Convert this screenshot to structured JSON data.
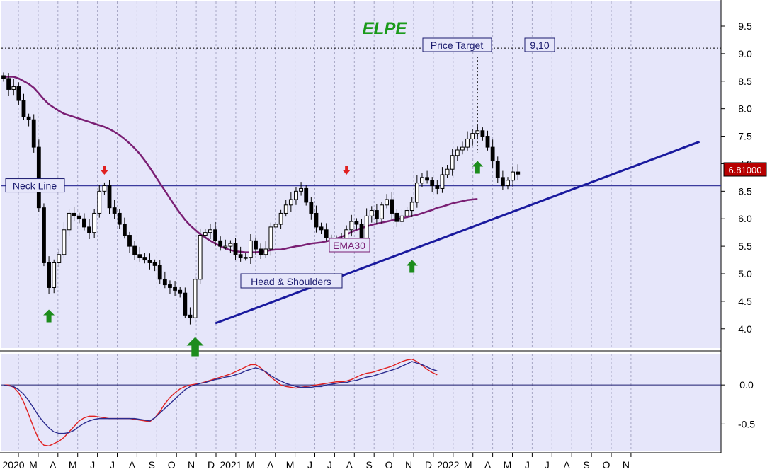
{
  "chart_data": {
    "type": "candlestick",
    "title": "ELPE",
    "colors": {
      "background": "#e6e6fa",
      "title": "#1a9a1a",
      "candle": "#000000",
      "ema": "#7a1f74",
      "trendline": "#1a1a9e",
      "neckline": "#3b3b9e",
      "macd": "#2b2b8e",
      "signal": "#e02020",
      "arrow_up": "#1d8c1d",
      "arrow_down": "#e02020",
      "last_price_bg": "#b80000",
      "last_price_fg": "#ffffff"
    },
    "price_axis": {
      "ticks": [
        "9.5",
        "9.0",
        "8.5",
        "8.0",
        "7.5",
        "7.0",
        "6.5",
        "6.0",
        "5.5",
        "5.0",
        "4.5",
        "4.0"
      ],
      "ylim": [
        3.65,
        9.95
      ]
    },
    "macd_axis": {
      "ticks": [
        "0.0",
        "-0.5"
      ],
      "ylim": [
        -0.85,
        0.4
      ]
    },
    "time_axis": {
      "labels": [
        "2020",
        "M",
        "A",
        "M",
        "J",
        "J",
        "A",
        "S",
        "O",
        "N",
        "D",
        "2021",
        "M",
        "A",
        "M",
        "J",
        "J",
        "A",
        "S",
        "O",
        "N",
        "D",
        "2022",
        "M",
        "A",
        "M",
        "J",
        "J",
        "A",
        "S",
        "O",
        "N"
      ]
    },
    "last_price": "6.81000",
    "annotations": {
      "price_target_label": "Price Target",
      "price_target_value": "9,10",
      "price_target_level": 9.1,
      "neckline_label": "Neck Line",
      "neckline_level": 6.6,
      "ema_label": "EMA30",
      "pattern_label": "Head & Shoulders",
      "trendline": {
        "from": {
          "week": 42,
          "price": 4.1
        },
        "to": {
          "week": 138,
          "price": 7.4
        }
      }
    },
    "price_weekly": [
      8.55,
      8.35,
      8.4,
      8.15,
      7.85,
      7.8,
      7.3,
      6.2,
      5.2,
      4.75,
      5.2,
      5.35,
      5.8,
      6.1,
      6.05,
      6.0,
      5.85,
      5.75,
      6.1,
      6.5,
      6.6,
      6.2,
      6.1,
      5.9,
      5.7,
      5.5,
      5.35,
      5.3,
      5.25,
      5.2,
      5.15,
      4.9,
      4.8,
      4.75,
      4.7,
      4.65,
      4.25,
      4.2,
      4.9,
      5.7,
      5.75,
      5.8,
      5.6,
      5.5,
      5.5,
      5.55,
      5.35,
      5.3,
      5.3,
      5.6,
      5.45,
      5.35,
      5.45,
      5.85,
      5.9,
      6.1,
      6.25,
      6.35,
      6.5,
      6.55,
      6.3,
      6.1,
      5.85,
      5.8,
      5.65,
      5.6,
      5.55,
      5.6,
      5.8,
      5.95,
      5.9,
      5.65,
      6.05,
      6.15,
      6.0,
      6.25,
      6.35,
      6.1,
      5.95,
      6.05,
      6.15,
      6.3,
      6.65,
      6.75,
      6.7,
      6.6,
      6.55,
      6.8,
      6.9,
      7.15,
      7.25,
      7.3,
      7.45,
      7.55,
      7.6,
      7.5,
      7.3,
      7.05,
      6.75,
      6.6,
      6.7,
      6.85,
      6.81
    ],
    "ema30_weekly": [
      8.58,
      8.58,
      8.58,
      8.55,
      8.5,
      8.45,
      8.38,
      8.28,
      8.17,
      8.08,
      8.02,
      7.96,
      7.91,
      7.88,
      7.85,
      7.82,
      7.79,
      7.76,
      7.73,
      7.7,
      7.67,
      7.63,
      7.58,
      7.52,
      7.45,
      7.37,
      7.28,
      7.18,
      7.06,
      6.93,
      6.79,
      6.65,
      6.51,
      6.37,
      6.23,
      6.1,
      5.98,
      5.88,
      5.8,
      5.72,
      5.66,
      5.6,
      5.55,
      5.5,
      5.46,
      5.43,
      5.41,
      5.4,
      5.39,
      5.39,
      5.39,
      5.4,
      5.41,
      5.43,
      5.44,
      5.44,
      5.46,
      5.48,
      5.5,
      5.51,
      5.53,
      5.55,
      5.56,
      5.57,
      5.59,
      5.61,
      5.64,
      5.67,
      5.71,
      5.76,
      5.8,
      5.83,
      5.86,
      5.89,
      5.91,
      5.93,
      5.95,
      5.97,
      5.99,
      6.01,
      6.03,
      6.05,
      6.07,
      6.1,
      6.13,
      6.16,
      6.2,
      6.22,
      6.25,
      6.28,
      6.3,
      6.32,
      6.34,
      6.35,
      6.36
    ],
    "macd_weekly": [
      0.0,
      -0.01,
      -0.02,
      -0.06,
      -0.12,
      -0.2,
      -0.3,
      -0.4,
      -0.48,
      -0.55,
      -0.6,
      -0.62,
      -0.62,
      -0.61,
      -0.58,
      -0.53,
      -0.49,
      -0.46,
      -0.44,
      -0.43,
      -0.43,
      -0.43,
      -0.43,
      -0.43,
      -0.43,
      -0.43,
      -0.43,
      -0.44,
      -0.45,
      -0.46,
      -0.42,
      -0.36,
      -0.3,
      -0.24,
      -0.18,
      -0.12,
      -0.06,
      -0.02,
      0.0,
      0.02,
      0.03,
      0.05,
      0.07,
      0.08,
      0.1,
      0.11,
      0.13,
      0.15,
      0.18,
      0.2,
      0.22,
      0.2,
      0.17,
      0.12,
      0.08,
      0.05,
      0.02,
      0.0,
      -0.02,
      -0.03,
      -0.03,
      -0.03,
      -0.02,
      -0.02,
      0.0,
      0.01,
      0.02,
      0.03,
      0.03,
      0.05,
      0.06,
      0.08,
      0.1,
      0.11,
      0.13,
      0.15,
      0.17,
      0.19,
      0.21,
      0.24,
      0.27,
      0.3,
      0.28,
      0.26,
      0.23,
      0.2,
      0.18
    ],
    "signal_weekly": [
      0.0,
      0.0,
      -0.03,
      -0.1,
      -0.22,
      -0.38,
      -0.55,
      -0.7,
      -0.77,
      -0.78,
      -0.75,
      -0.72,
      -0.67,
      -0.6,
      -0.53,
      -0.46,
      -0.42,
      -0.4,
      -0.4,
      -0.41,
      -0.42,
      -0.43,
      -0.43,
      -0.43,
      -0.43,
      -0.43,
      -0.44,
      -0.45,
      -0.46,
      -0.47,
      -0.42,
      -0.34,
      -0.24,
      -0.16,
      -0.1,
      -0.05,
      -0.02,
      0.0,
      0.01,
      0.02,
      0.04,
      0.06,
      0.08,
      0.1,
      0.12,
      0.14,
      0.17,
      0.2,
      0.23,
      0.26,
      0.26,
      0.22,
      0.16,
      0.1,
      0.05,
      0.0,
      -0.02,
      -0.03,
      -0.04,
      -0.03,
      -0.02,
      -0.01,
      0.0,
      0.01,
      0.02,
      0.03,
      0.04,
      0.04,
      0.05,
      0.07,
      0.1,
      0.13,
      0.15,
      0.16,
      0.18,
      0.2,
      0.22,
      0.24,
      0.27,
      0.3,
      0.32,
      0.33,
      0.3,
      0.25,
      0.2,
      0.16,
      0.13
    ],
    "up_arrows": [
      {
        "week": 9,
        "price": 4.35
      },
      {
        "week": 38,
        "price": 3.85
      },
      {
        "week": 81,
        "price": 5.25
      },
      {
        "week": 94,
        "price": 7.05
      }
    ],
    "down_arrows": [
      {
        "week": 20,
        "price": 6.8
      },
      {
        "week": 68,
        "price": 6.8
      }
    ]
  }
}
